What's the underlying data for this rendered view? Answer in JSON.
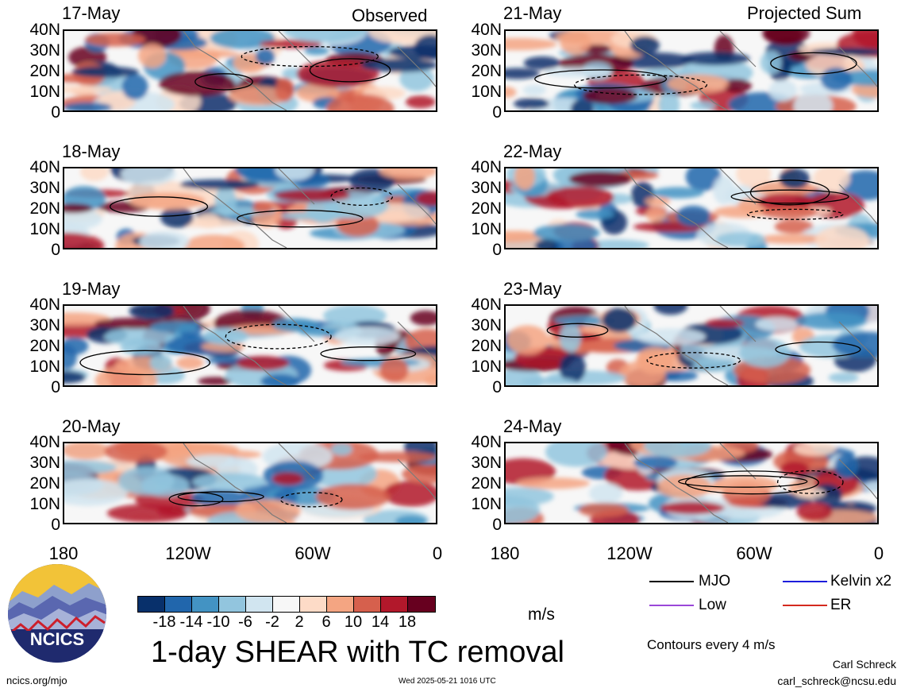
{
  "corner_labels": {
    "observed": "Observed",
    "projected": "Projected Sum"
  },
  "panels": {
    "left": [
      "17-May",
      "18-May",
      "19-May",
      "20-May"
    ],
    "right": [
      "21-May",
      "22-May",
      "23-May",
      "24-May"
    ]
  },
  "y_ticks": [
    "40N",
    "30N",
    "20N",
    "10N",
    "0"
  ],
  "x_ticks": [
    "180",
    "120W",
    "60W",
    "0"
  ],
  "colorbar": {
    "labels": [
      "-18",
      "-14",
      "-10",
      "-6",
      "-2",
      "2",
      "6",
      "10",
      "14",
      "18"
    ],
    "colors": [
      "#08306b",
      "#2166ac",
      "#4393c3",
      "#92c5de",
      "#d1e5f0",
      "#f7f7f7",
      "#fddbc7",
      "#f4a582",
      "#d6604d",
      "#b2182b",
      "#67001f"
    ],
    "unit": "m/s"
  },
  "title": "1-day SHEAR with TC removal",
  "legend": {
    "items": [
      {
        "label": "MJO",
        "color": "#000000"
      },
      {
        "label": "Kelvin x2",
        "color": "#1d1ddb"
      },
      {
        "label": "Low",
        "color": "#9a47d9"
      },
      {
        "label": "ER",
        "color": "#d42a1f"
      }
    ],
    "note": "Contours every 4 m/s"
  },
  "footer": {
    "url": "ncics.org/mjo",
    "timestamp": "Wed 2025-05-21 1016 UTC",
    "author": "Carl Schreck",
    "email": "carl_schreck@ncsu.edu"
  },
  "logo": {
    "text": "NCICS"
  }
}
